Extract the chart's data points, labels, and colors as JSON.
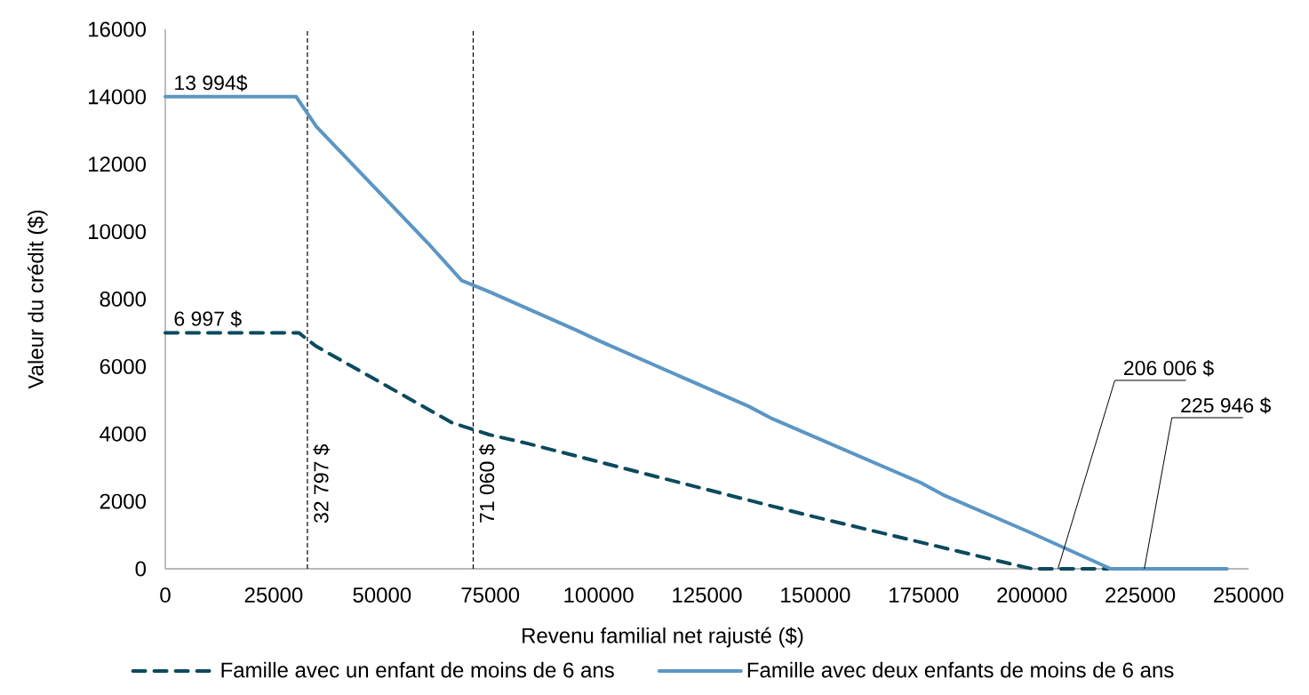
{
  "chart_data": {
    "type": "line",
    "xlabel": "Revenu familial net rajusté ($)",
    "ylabel": "Valeur du crédit ($)",
    "xlim": [
      0,
      250000
    ],
    "ylim": [
      0,
      16000
    ],
    "xticks": [
      0,
      25000,
      50000,
      75000,
      100000,
      125000,
      150000,
      175000,
      200000,
      225000,
      250000
    ],
    "yticks": [
      0,
      2000,
      4000,
      6000,
      8000,
      10000,
      12000,
      14000,
      16000
    ],
    "series": [
      {
        "name": "Famille avec un enfant de moins de 6 ans",
        "color": "#0b4a5e",
        "line_style": "dashed",
        "x": [
          0,
          30800,
          34800,
          61100,
          66200,
          74700,
          83500,
          111300,
          147900,
          193700,
          198300,
          200100,
          217600
        ],
        "values": [
          7000,
          7000,
          6600,
          4700,
          4330,
          3980,
          3720,
          2800,
          1600,
          190,
          50,
          0,
          0
        ]
      },
      {
        "name": "Famille avec deux enfants de moins de 6 ans",
        "color": "#5b96c4",
        "line_style": "solid",
        "x": [
          0,
          30200,
          34900,
          60600,
          68400,
          74700,
          94800,
          100300,
          134600,
          140100,
          174400,
          179900,
          199200,
          218200,
          245000
        ],
        "values": [
          14000,
          14000,
          13110,
          9660,
          8550,
          8220,
          7080,
          6750,
          4820,
          4450,
          2550,
          2170,
          1100,
          0,
          0
        ]
      }
    ],
    "ref_lines": [
      {
        "axis": "x",
        "value": 32797,
        "label": "32 797 $",
        "color": "#000000",
        "line_style": "dashed"
      },
      {
        "axis": "x",
        "value": 71060,
        "label": "71 060 $",
        "color": "#000000",
        "line_style": "dashed"
      }
    ],
    "annotations": [
      {
        "text": "13 994$",
        "x": 0,
        "y": 13994
      },
      {
        "text": "6 997 $",
        "x": 0,
        "y": 6997
      },
      {
        "text": "206 006 $",
        "x": 206006,
        "y": 0
      },
      {
        "text": "225 946 $",
        "x": 225946,
        "y": 0
      }
    ],
    "legend": "bottom",
    "marker": "none"
  }
}
